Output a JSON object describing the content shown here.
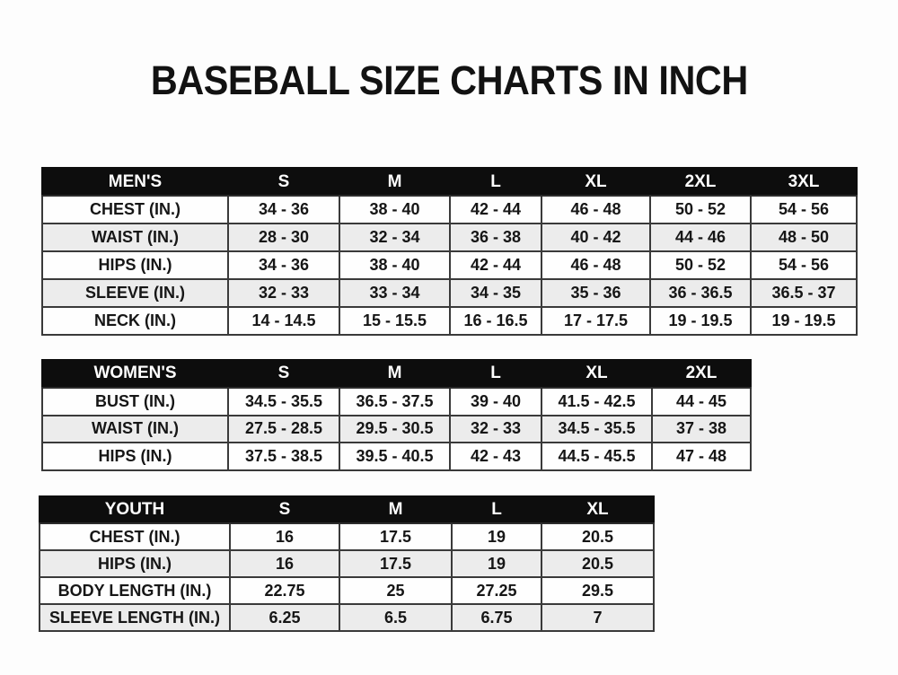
{
  "page": {
    "title": "BASEBALL SIZE CHARTS IN INCH"
  },
  "colors": {
    "header_bg": "#0d0d0d",
    "header_text": "#ffffff",
    "row_alt": "#ececec",
    "border": "#3a3a3a",
    "text": "#161616"
  },
  "tables": [
    {
      "name": "mens",
      "header": [
        "MEN'S",
        "S",
        "M",
        "L",
        "XL",
        "2XL",
        "3XL"
      ],
      "rows": [
        [
          "CHEST (IN.)",
          "34 - 36",
          "38 - 40",
          "42 - 44",
          "46 - 48",
          "50 - 52",
          "54 - 56"
        ],
        [
          "WAIST (IN.)",
          "28 - 30",
          "32 - 34",
          "36 - 38",
          "40 - 42",
          "44 - 46",
          "48 - 50"
        ],
        [
          "HIPS (IN.)",
          "34 - 36",
          "38 - 40",
          "42 - 44",
          "46 - 48",
          "50 - 52",
          "54 - 56"
        ],
        [
          "SLEEVE (IN.)",
          "32 - 33",
          "33 - 34",
          "34 - 35",
          "35 - 36",
          "36 - 36.5",
          "36.5 - 37"
        ],
        [
          "NECK (IN.)",
          "14 - 14.5",
          "15 - 15.5",
          "16 - 16.5",
          "17 - 17.5",
          "19 - 19.5",
          "19 - 19.5"
        ]
      ]
    },
    {
      "name": "womens",
      "header": [
        "WOMEN'S",
        "S",
        "M",
        "L",
        "XL",
        "2XL"
      ],
      "rows": [
        [
          "BUST (IN.)",
          "34.5 - 35.5",
          "36.5 - 37.5",
          "39 - 40",
          "41.5 - 42.5",
          "44 - 45"
        ],
        [
          "WAIST (IN.)",
          "27.5 - 28.5",
          "29.5 - 30.5",
          "32 - 33",
          "34.5 - 35.5",
          "37 - 38"
        ],
        [
          "HIPS (IN.)",
          "37.5 - 38.5",
          "39.5 - 40.5",
          "42 - 43",
          "44.5 - 45.5",
          "47 - 48"
        ]
      ]
    },
    {
      "name": "youth",
      "header": [
        "YOUTH",
        "S",
        "M",
        "L",
        "XL"
      ],
      "rows": [
        [
          "CHEST (IN.)",
          "16",
          "17.5",
          "19",
          "20.5"
        ],
        [
          "HIPS (IN.)",
          "16",
          "17.5",
          "19",
          "20.5"
        ],
        [
          "BODY LENGTH (IN.)",
          "22.75",
          "25",
          "27.25",
          "29.5"
        ],
        [
          "SLEEVE LENGTH (IN.)",
          "6.25",
          "6.5",
          "6.75",
          "7"
        ]
      ]
    }
  ]
}
